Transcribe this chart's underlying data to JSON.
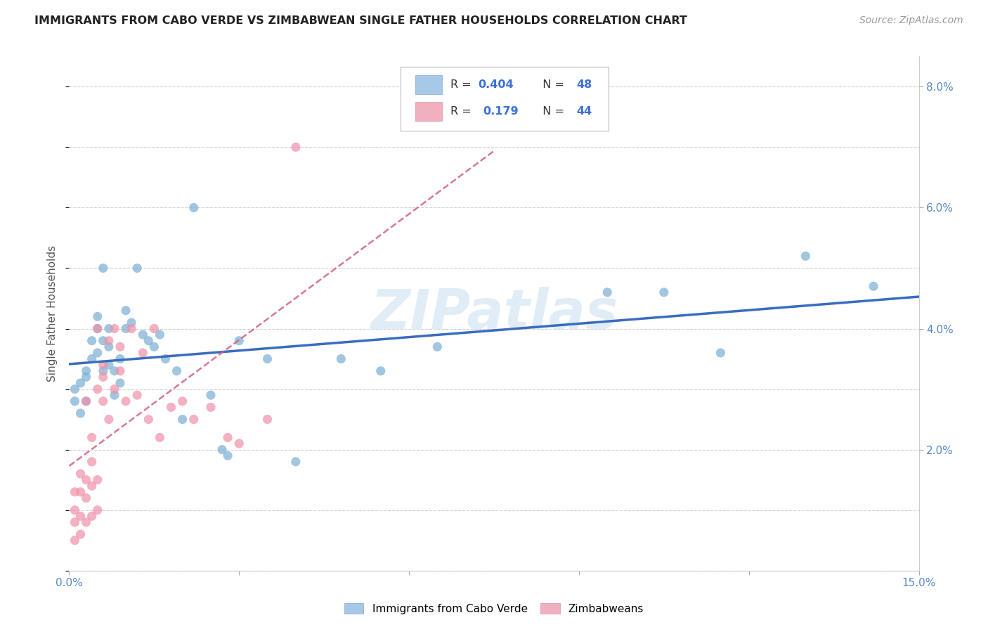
{
  "title": "IMMIGRANTS FROM CABO VERDE VS ZIMBABWEAN SINGLE FATHER HOUSEHOLDS CORRELATION CHART",
  "source": "Source: ZipAtlas.com",
  "ylabel": "Single Father Households",
  "x_min": 0.0,
  "x_max": 0.15,
  "y_min": 0.0,
  "y_max": 0.085,
  "cabo_verde_color": "#7bafd4",
  "zimbabwe_color": "#f090a8",
  "cabo_verde_line_color": "#3a6cc0",
  "zimbabwe_line_color": "#d06080",
  "background_color": "#ffffff",
  "grid_color": "#cccccc",
  "cabo_verde_x": [
    0.001,
    0.001,
    0.002,
    0.002,
    0.003,
    0.003,
    0.003,
    0.004,
    0.004,
    0.005,
    0.005,
    0.005,
    0.006,
    0.006,
    0.006,
    0.007,
    0.007,
    0.007,
    0.008,
    0.008,
    0.009,
    0.009,
    0.01,
    0.01,
    0.011,
    0.012,
    0.013,
    0.014,
    0.015,
    0.016,
    0.017,
    0.019,
    0.02,
    0.022,
    0.025,
    0.027,
    0.028,
    0.03,
    0.035,
    0.04,
    0.048,
    0.055,
    0.065,
    0.095,
    0.105,
    0.115,
    0.13,
    0.142
  ],
  "cabo_verde_y": [
    0.03,
    0.028,
    0.031,
    0.026,
    0.033,
    0.028,
    0.032,
    0.035,
    0.038,
    0.04,
    0.042,
    0.036,
    0.05,
    0.038,
    0.033,
    0.04,
    0.037,
    0.034,
    0.033,
    0.029,
    0.035,
    0.031,
    0.04,
    0.043,
    0.041,
    0.05,
    0.039,
    0.038,
    0.037,
    0.039,
    0.035,
    0.033,
    0.025,
    0.06,
    0.029,
    0.02,
    0.019,
    0.038,
    0.035,
    0.018,
    0.035,
    0.033,
    0.037,
    0.046,
    0.046,
    0.036,
    0.052,
    0.047
  ],
  "zimbabwe_x": [
    0.001,
    0.001,
    0.001,
    0.001,
    0.002,
    0.002,
    0.002,
    0.002,
    0.003,
    0.003,
    0.003,
    0.003,
    0.004,
    0.004,
    0.004,
    0.004,
    0.005,
    0.005,
    0.005,
    0.005,
    0.006,
    0.006,
    0.006,
    0.007,
    0.007,
    0.008,
    0.008,
    0.009,
    0.009,
    0.01,
    0.011,
    0.012,
    0.013,
    0.014,
    0.015,
    0.016,
    0.018,
    0.02,
    0.022,
    0.025,
    0.028,
    0.03,
    0.035,
    0.04
  ],
  "zimbabwe_y": [
    0.005,
    0.008,
    0.01,
    0.013,
    0.006,
    0.009,
    0.013,
    0.016,
    0.008,
    0.012,
    0.015,
    0.028,
    0.009,
    0.014,
    0.018,
    0.022,
    0.01,
    0.015,
    0.03,
    0.04,
    0.028,
    0.032,
    0.034,
    0.025,
    0.038,
    0.03,
    0.04,
    0.033,
    0.037,
    0.028,
    0.04,
    0.029,
    0.036,
    0.025,
    0.04,
    0.022,
    0.027,
    0.028,
    0.025,
    0.027,
    0.022,
    0.021,
    0.025,
    0.07
  ],
  "watermark_text": "ZIPatlas",
  "watermark_color": "#c8dff0",
  "watermark_alpha": 0.55
}
